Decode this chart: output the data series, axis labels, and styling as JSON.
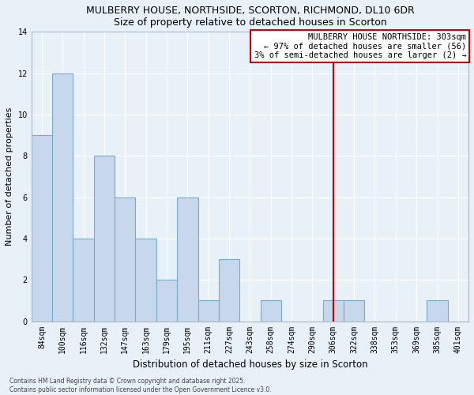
{
  "title": "MULBERRY HOUSE, NORTHSIDE, SCORTON, RICHMOND, DL10 6DR",
  "subtitle": "Size of property relative to detached houses in Scorton",
  "xlabel": "Distribution of detached houses by size in Scorton",
  "ylabel": "Number of detached properties",
  "categories": [
    "84sqm",
    "100sqm",
    "116sqm",
    "132sqm",
    "147sqm",
    "163sqm",
    "179sqm",
    "195sqm",
    "211sqm",
    "227sqm",
    "243sqm",
    "258sqm",
    "274sqm",
    "290sqm",
    "306sqm",
    "322sqm",
    "338sqm",
    "353sqm",
    "369sqm",
    "385sqm",
    "401sqm"
  ],
  "values": [
    9,
    12,
    4,
    8,
    6,
    4,
    2,
    6,
    1,
    3,
    0,
    1,
    0,
    0,
    1,
    1,
    0,
    0,
    0,
    1,
    0
  ],
  "bar_color": "#c8d8ec",
  "bar_edgecolor": "#7aaacb",
  "vline_x": 14,
  "vline_color": "#cc0000",
  "ylim": [
    0,
    14
  ],
  "yticks": [
    0,
    2,
    4,
    6,
    8,
    10,
    12,
    14
  ],
  "annotation_title": "MULBERRY HOUSE NORTHSIDE: 303sqm",
  "annotation_line1": "← 97% of detached houses are smaller (56)",
  "annotation_line2": "3% of semi-detached houses are larger (2) →",
  "annotation_box_facecolor": "#ffffff",
  "annotation_box_edgecolor": "#cc0000",
  "footer_line1": "Contains HM Land Registry data © Crown copyright and database right 2025.",
  "footer_line2": "Contains public sector information licensed under the Open Government Licence v3.0.",
  "background_color": "#e8f0f8",
  "grid_color": "#ffffff",
  "spine_color": "#aabbcc"
}
